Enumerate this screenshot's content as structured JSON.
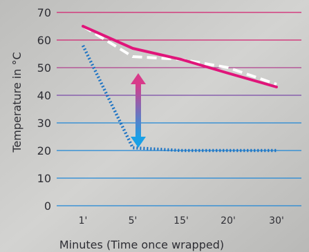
{
  "chart_data": {
    "type": "line",
    "xlabel": "Minutes (Time once wrapped)",
    "ylabel": "Temperature in °C",
    "categories": [
      "1'",
      "5'",
      "15'",
      "20'",
      "30'"
    ],
    "ylim": [
      0,
      70
    ],
    "yticks": [
      0,
      10,
      20,
      30,
      40,
      50,
      60,
      70
    ],
    "grid": true,
    "legend": "none",
    "series": [
      {
        "values": [
          65,
          57,
          53,
          48,
          43
        ],
        "style": "solid",
        "color": "#e0157a"
      },
      {
        "values": [
          65,
          54,
          53,
          50,
          44
        ],
        "style": "dashed",
        "color": "#ffffff"
      },
      {
        "values": [
          58,
          21,
          20,
          20,
          20
        ],
        "style": "dotted",
        "color": "#1a72c4"
      }
    ],
    "annotations": [
      {
        "type": "double-arrow",
        "x_category": "5'",
        "from": 21,
        "to": 48,
        "colors": [
          "#1aa0e6",
          "#d83a8a"
        ]
      }
    ]
  }
}
